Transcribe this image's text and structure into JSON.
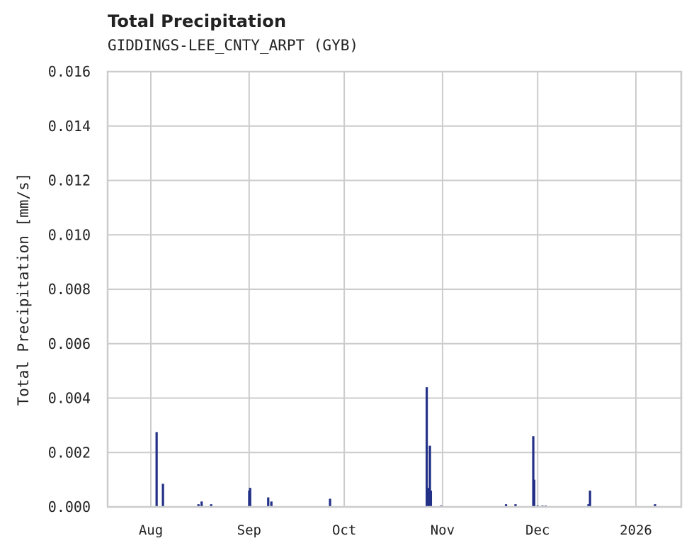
{
  "chart_data": {
    "type": "bar",
    "title": "Total Precipitation",
    "subtitle": "GIDDINGS-LEE_CNTY_ARPT (GYB)",
    "xlabel": "",
    "ylabel": "Total Precipitation [mm/s]",
    "ylim": [
      0,
      0.016
    ],
    "y_ticks": [
      "0.000",
      "0.002",
      "0.004",
      "0.006",
      "0.008",
      "0.010",
      "0.012",
      "0.014",
      "0.016"
    ],
    "x_ticks": [
      "Aug",
      "Sep",
      "Oct",
      "Nov",
      "Dec",
      "2026"
    ],
    "grid": true,
    "color": "#233087",
    "x_day_offsets_from_aug1": [
      1.8,
      3.8,
      15.0,
      16.0,
      19.0,
      31.0,
      31.3,
      37.0,
      38.0,
      56.5,
      87.0,
      87.3,
      88.0,
      88.3,
      91.5,
      112.0,
      115.0,
      120.6,
      120.9,
      122.0,
      123.5,
      124.5,
      138.0,
      138.5,
      159.0
    ],
    "values": [
      0.00275,
      0.00085,
      0.0001,
      0.0002,
      0.0001,
      0.0006,
      0.0007,
      0.00035,
      0.0002,
      0.0003,
      0.0044,
      0.0007,
      0.00225,
      0.0006,
      5e-05,
      0.0001,
      0.0001,
      0.0026,
      0.001,
      5e-05,
      5e-05,
      5e-05,
      0.0001,
      0.0006,
      0.0001
    ]
  }
}
